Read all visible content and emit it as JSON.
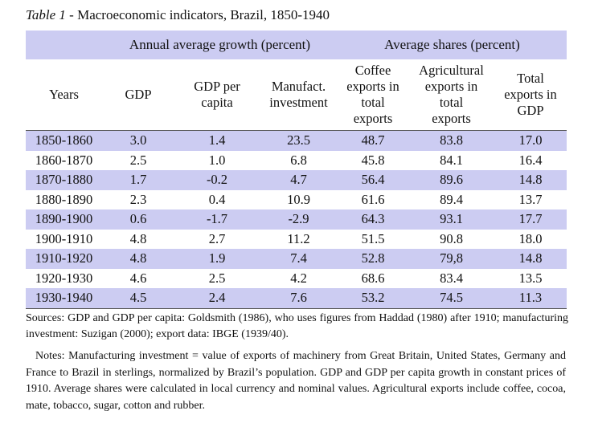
{
  "caption": {
    "label": "Table 1",
    "title": " - Macroeconomic indicators, Brazil, 1850-1940"
  },
  "group_headers": [
    "Annual average growth (percent)",
    "Average shares (percent)"
  ],
  "column_headers": [
    [
      "Years"
    ],
    [
      "GDP"
    ],
    [
      "GDP per",
      "capita"
    ],
    [
      "Manufact.",
      "investment"
    ],
    [
      "Coffee",
      "exports in",
      "total",
      "exports"
    ],
    [
      "Agricultural",
      "exports in",
      "total",
      "exports"
    ],
    [
      "Total",
      "exports in",
      "GDP"
    ]
  ],
  "rows": [
    [
      "1850-1860",
      "3.0",
      "1.4",
      "23.5",
      "48.7",
      "83.8",
      "17.0"
    ],
    [
      "1860-1870",
      "2.5",
      "1.0",
      "6.8",
      "45.8",
      "84.1",
      "16.4"
    ],
    [
      "1870-1880",
      "1.7",
      "-0.2",
      "4.7",
      "56.4",
      "89.6",
      "14.8"
    ],
    [
      "1880-1890",
      "2.3",
      "0.4",
      "10.9",
      "61.6",
      "89.4",
      "13.7"
    ],
    [
      "1890-1900",
      "0.6",
      "-1.7",
      "-2.9",
      "64.3",
      "93.1",
      "17.7"
    ],
    [
      "1900-1910",
      "4.8",
      "2.7",
      "11.2",
      "51.5",
      "90.8",
      "18.0"
    ],
    [
      "1910-1920",
      "4.8",
      "1.9",
      "7.4",
      "52.8",
      "79,8",
      "14.8"
    ],
    [
      "1920-1930",
      "4.6",
      "2.5",
      "4.2",
      "68.6",
      "83.4",
      "13.5"
    ],
    [
      "1930-1940",
      "4.5",
      "2.4",
      "7.6",
      "53.2",
      "74.5",
      "11.3"
    ]
  ],
  "sources": "Sources: GDP and GDP per capita: Goldsmith (1986), who uses figures from Haddad (1980) after 1910; manufacturing investment: Suzigan (2000); export data: IBGE (1939/40).",
  "notes": "Notes: Manufacturing investment = value of exports of machinery from Great Britain, United States, Germany and France to Brazil in sterlings, normalized by Brazil’s population. GDP and GDP per capita growth in constant prices of 1910. Average shares were calculated in local currency and nominal values. Agricultural exports include coffee, cocoa, mate, tobacco, sugar, cotton and rubber.",
  "colors": {
    "shade": "#ccccf2"
  }
}
